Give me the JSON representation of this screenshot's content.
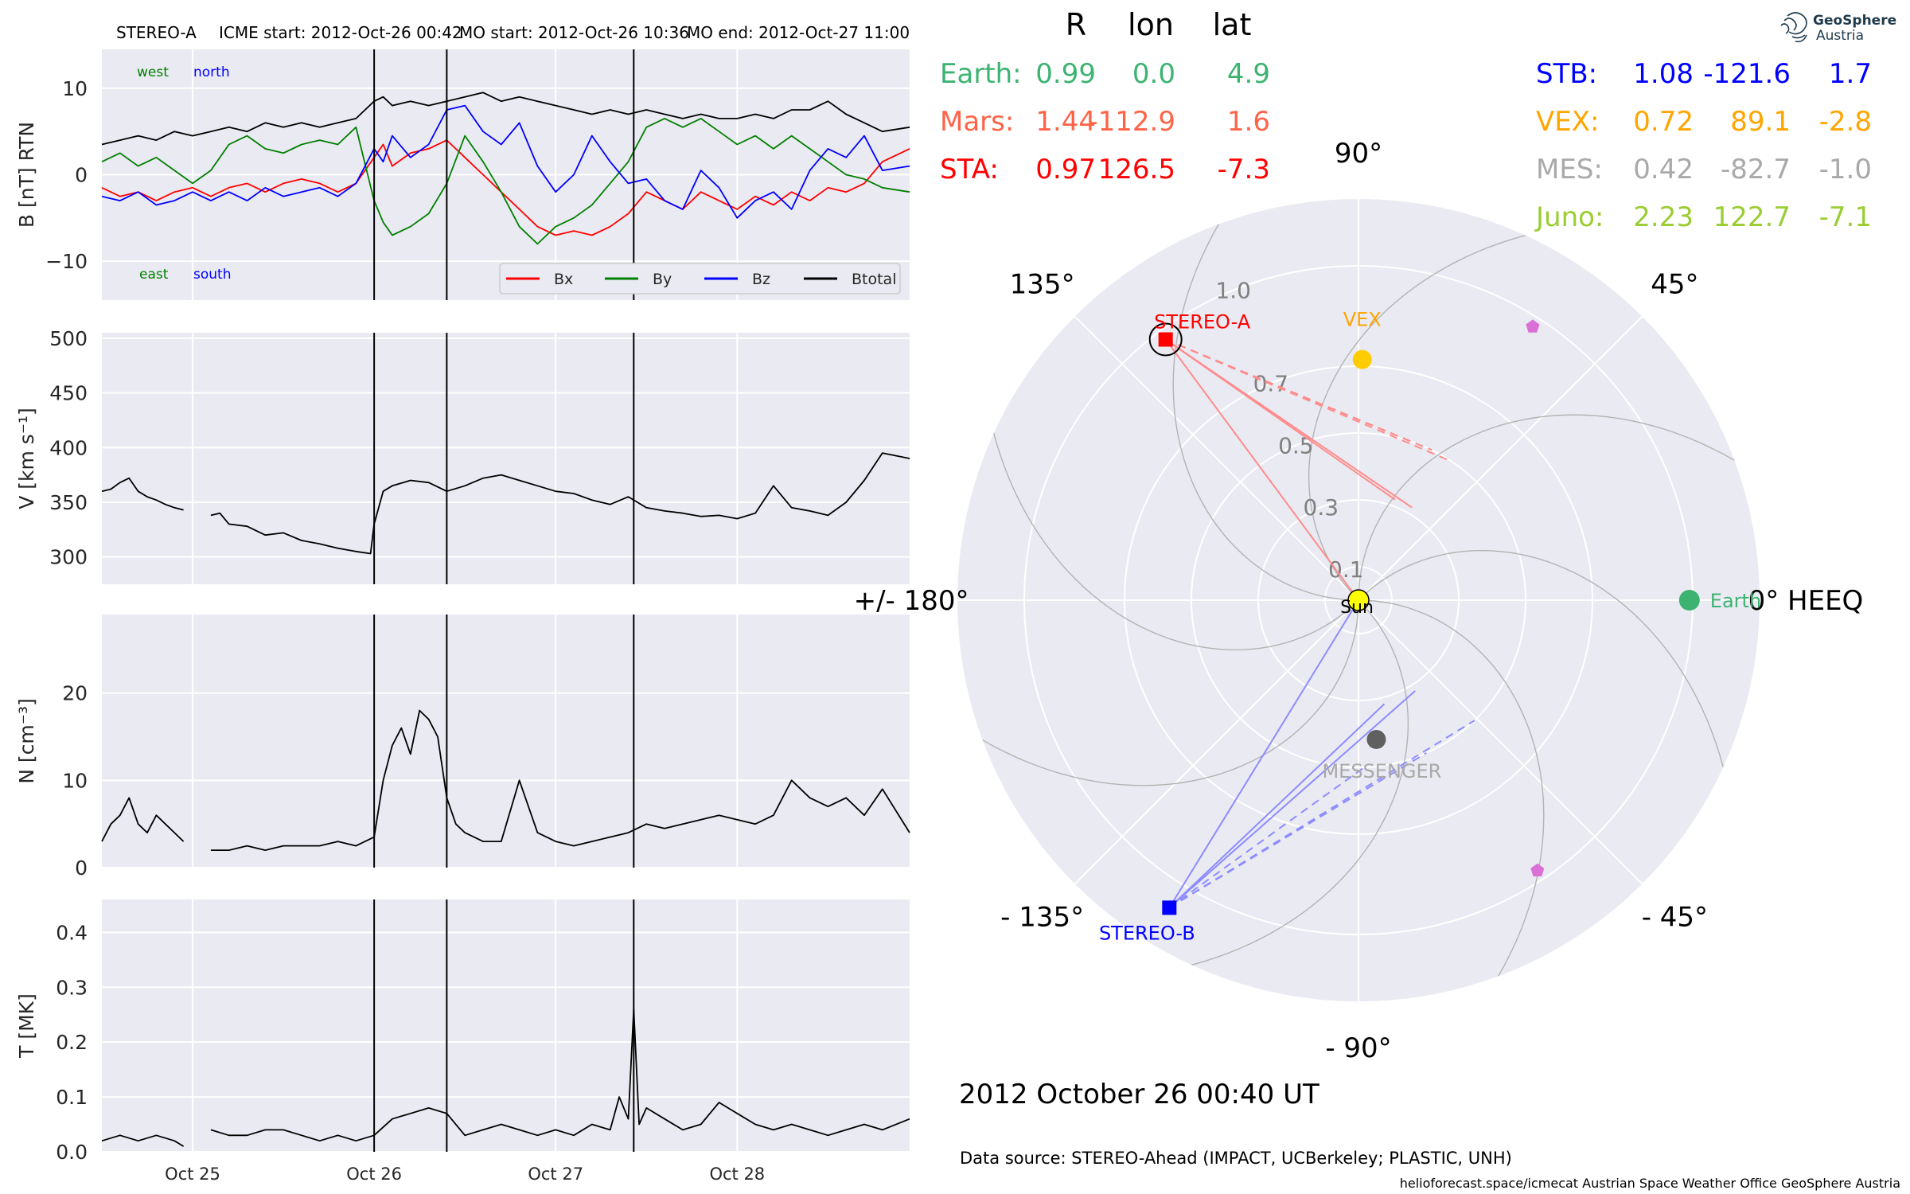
{
  "header": {
    "spacecraft": "STEREO-A",
    "icme_start": "ICME start: 2012-Oct-26 00:42",
    "mo_start": "MO start: 2012-Oct-26 10:36",
    "mo_end": "MO end: 2012-Oct-27 11:00"
  },
  "chart_data": [
    {
      "type": "line",
      "name": "magnetic-field",
      "ylabel": "B [nT] RTN",
      "ylim": [
        -14.5,
        14.5
      ],
      "yticks": [
        -10,
        0,
        10
      ],
      "ytick_labels": [
        "−10",
        "0",
        "10"
      ],
      "xlim": [
        0.0,
        4.45
      ],
      "xticks": [
        0.5,
        1.5,
        2.5,
        3.5
      ],
      "xtick_labels": [
        "Oct 25",
        "Oct 26",
        "Oct 27",
        "Oct 28"
      ],
      "event_lines": [
        1.5,
        1.9,
        2.93
      ],
      "corner_labels": {
        "west": "west",
        "north": "north",
        "east": "east",
        "south": "south"
      },
      "legend": [
        "Bx",
        "By",
        "Bz",
        "Btotal"
      ],
      "series": [
        {
          "name": "Bx",
          "color": "#ff0000",
          "x": [
            0.0,
            0.1,
            0.2,
            0.3,
            0.4,
            0.5,
            0.6,
            0.7,
            0.8,
            0.9,
            1.0,
            1.1,
            1.2,
            1.3,
            1.4,
            1.5,
            1.55,
            1.6,
            1.7,
            1.8,
            1.9,
            2.0,
            2.1,
            2.2,
            2.3,
            2.4,
            2.5,
            2.6,
            2.7,
            2.8,
            2.9,
            3.0,
            3.1,
            3.2,
            3.3,
            3.4,
            3.5,
            3.6,
            3.7,
            3.8,
            3.9,
            4.0,
            4.1,
            4.2,
            4.3,
            4.45
          ],
          "y": [
            -1.5,
            -2.5,
            -2.0,
            -3.0,
            -2.0,
            -1.5,
            -2.5,
            -1.5,
            -1.0,
            -2.0,
            -1.0,
            -0.5,
            -1.0,
            -2.0,
            -1.0,
            2.0,
            3.5,
            1.0,
            2.5,
            3.0,
            4.0,
            2.0,
            0.0,
            -2.0,
            -4.0,
            -6.0,
            -7.0,
            -6.5,
            -7.0,
            -6.0,
            -4.5,
            -2.0,
            -3.0,
            -4.0,
            -2.0,
            -3.0,
            -4.0,
            -2.5,
            -3.5,
            -2.0,
            -3.0,
            -1.5,
            -2.0,
            -1.0,
            1.5,
            3.0
          ]
        },
        {
          "name": "By",
          "color": "#008000",
          "x": [
            0.0,
            0.1,
            0.2,
            0.3,
            0.4,
            0.5,
            0.6,
            0.7,
            0.8,
            0.9,
            1.0,
            1.1,
            1.2,
            1.3,
            1.4,
            1.5,
            1.55,
            1.6,
            1.7,
            1.8,
            1.9,
            2.0,
            2.1,
            2.2,
            2.3,
            2.4,
            2.5,
            2.6,
            2.7,
            2.8,
            2.9,
            3.0,
            3.1,
            3.2,
            3.3,
            3.4,
            3.5,
            3.6,
            3.7,
            3.8,
            3.9,
            4.0,
            4.1,
            4.2,
            4.3,
            4.45
          ],
          "y": [
            1.5,
            2.5,
            1.0,
            2.0,
            0.5,
            -1.0,
            0.5,
            3.5,
            4.5,
            3.0,
            2.5,
            3.5,
            4.0,
            3.5,
            5.5,
            -3.0,
            -5.5,
            -7.0,
            -6.0,
            -4.5,
            -1.0,
            4.5,
            1.5,
            -2.0,
            -6.0,
            -8.0,
            -6.0,
            -5.0,
            -3.5,
            -1.0,
            1.5,
            5.5,
            6.5,
            5.5,
            6.5,
            5.0,
            3.5,
            4.5,
            3.0,
            4.5,
            3.0,
            1.5,
            0.0,
            -0.5,
            -1.5,
            -2.0
          ]
        },
        {
          "name": "Bz",
          "color": "#0000ff",
          "x": [
            0.0,
            0.1,
            0.2,
            0.3,
            0.4,
            0.5,
            0.6,
            0.7,
            0.8,
            0.9,
            1.0,
            1.1,
            1.2,
            1.3,
            1.4,
            1.5,
            1.55,
            1.6,
            1.7,
            1.8,
            1.9,
            2.0,
            2.1,
            2.2,
            2.3,
            2.4,
            2.5,
            2.6,
            2.7,
            2.8,
            2.9,
            3.0,
            3.1,
            3.2,
            3.3,
            3.4,
            3.5,
            3.6,
            3.7,
            3.8,
            3.9,
            4.0,
            4.1,
            4.2,
            4.3,
            4.45
          ],
          "y": [
            -2.5,
            -3.0,
            -2.0,
            -3.5,
            -3.0,
            -2.0,
            -3.0,
            -2.0,
            -3.0,
            -1.5,
            -2.5,
            -2.0,
            -1.5,
            -2.5,
            -1.0,
            3.0,
            1.5,
            4.5,
            2.0,
            3.5,
            7.5,
            8.0,
            5.0,
            3.5,
            6.0,
            1.0,
            -2.0,
            0.0,
            4.5,
            1.5,
            -1.0,
            -0.5,
            -3.0,
            -4.0,
            0.5,
            -1.5,
            -5.0,
            -3.0,
            -2.0,
            -4.0,
            0.5,
            3.0,
            2.0,
            4.5,
            0.5,
            1.0
          ]
        },
        {
          "name": "Btotal",
          "color": "#000000",
          "x": [
            0.0,
            0.1,
            0.2,
            0.3,
            0.4,
            0.5,
            0.6,
            0.7,
            0.8,
            0.9,
            1.0,
            1.1,
            1.2,
            1.3,
            1.4,
            1.5,
            1.55,
            1.6,
            1.7,
            1.8,
            1.9,
            2.0,
            2.1,
            2.2,
            2.3,
            2.4,
            2.5,
            2.6,
            2.7,
            2.8,
            2.9,
            3.0,
            3.1,
            3.2,
            3.3,
            3.4,
            3.5,
            3.6,
            3.7,
            3.8,
            3.9,
            4.0,
            4.1,
            4.2,
            4.3,
            4.45
          ],
          "y": [
            3.5,
            4.0,
            4.5,
            4.0,
            5.0,
            4.5,
            5.0,
            5.5,
            5.0,
            6.0,
            5.5,
            6.0,
            5.5,
            6.0,
            6.5,
            8.5,
            9.0,
            8.0,
            8.5,
            8.0,
            8.5,
            9.0,
            9.5,
            8.5,
            9.0,
            8.5,
            8.0,
            7.5,
            7.0,
            7.5,
            7.0,
            7.5,
            7.0,
            6.5,
            7.0,
            6.5,
            6.5,
            7.0,
            6.5,
            7.5,
            7.5,
            8.5,
            7.0,
            6.0,
            5.0,
            5.5
          ]
        }
      ]
    },
    {
      "type": "line",
      "name": "speed",
      "ylabel": "V [km s⁻¹]",
      "ylim": [
        275,
        505
      ],
      "yticks": [
        300,
        350,
        400,
        450,
        500
      ],
      "ytick_labels": [
        "300",
        "350",
        "400",
        "450",
        "500"
      ],
      "xlim": [
        0.0,
        4.45
      ],
      "xticks": [
        0.5,
        1.5,
        2.5,
        3.5
      ],
      "event_lines": [
        1.5,
        1.9,
        2.93
      ],
      "series": [
        {
          "name": "V",
          "color": "#000000",
          "x": [
            0.0,
            0.05,
            0.1,
            0.15,
            0.2,
            0.25,
            0.3,
            0.35,
            0.4,
            0.45,
            null,
            0.6,
            0.65,
            0.7,
            0.8,
            0.9,
            1.0,
            1.1,
            1.2,
            1.3,
            1.4,
            1.48,
            1.5,
            1.55,
            1.6,
            1.7,
            1.8,
            1.9,
            2.0,
            2.1,
            2.2,
            2.3,
            2.4,
            2.5,
            2.6,
            2.7,
            2.8,
            2.9,
            3.0,
            3.1,
            3.2,
            3.3,
            3.4,
            3.5,
            3.6,
            3.7,
            3.8,
            3.9,
            4.0,
            4.1,
            4.2,
            4.3,
            4.45
          ],
          "y": [
            360,
            362,
            368,
            372,
            360,
            355,
            352,
            348,
            345,
            343,
            null,
            338,
            340,
            330,
            328,
            320,
            322,
            315,
            312,
            308,
            305,
            303,
            330,
            360,
            365,
            370,
            368,
            360,
            365,
            372,
            375,
            370,
            365,
            360,
            358,
            352,
            348,
            355,
            345,
            342,
            340,
            337,
            338,
            335,
            340,
            365,
            345,
            342,
            338,
            350,
            370,
            395,
            390
          ]
        }
      ]
    },
    {
      "type": "line",
      "name": "density",
      "ylabel": "N [cm⁻³]",
      "ylim": [
        0,
        29
      ],
      "yticks": [
        0,
        10,
        20
      ],
      "ytick_labels": [
        "0",
        "10",
        "20"
      ],
      "xlim": [
        0.0,
        4.45
      ],
      "xticks": [
        0.5,
        1.5,
        2.5,
        3.5
      ],
      "event_lines": [
        1.5,
        1.9,
        2.93
      ],
      "series": [
        {
          "name": "N",
          "color": "#000000",
          "x": [
            0.0,
            0.05,
            0.1,
            0.15,
            0.2,
            0.25,
            0.3,
            0.35,
            0.4,
            0.45,
            null,
            0.6,
            0.7,
            0.8,
            0.9,
            1.0,
            1.1,
            1.2,
            1.3,
            1.4,
            1.45,
            1.5,
            1.55,
            1.6,
            1.65,
            1.7,
            1.75,
            1.8,
            1.85,
            1.9,
            1.95,
            2.0,
            2.1,
            2.2,
            2.3,
            2.4,
            2.5,
            2.6,
            2.7,
            2.8,
            2.9,
            3.0,
            3.1,
            3.2,
            3.3,
            3.4,
            3.5,
            3.6,
            3.7,
            3.8,
            3.9,
            4.0,
            4.1,
            4.2,
            4.3,
            4.45
          ],
          "y": [
            3,
            5,
            6,
            8,
            5,
            4,
            6,
            5,
            4,
            3,
            null,
            2,
            2,
            2.5,
            2,
            2.5,
            2.5,
            2.5,
            3,
            2.5,
            3,
            3.5,
            10,
            14,
            16,
            13,
            18,
            17,
            15,
            8,
            5,
            4,
            3,
            3,
            10,
            4,
            3,
            2.5,
            3,
            3.5,
            4,
            5,
            4.5,
            5,
            5.5,
            6,
            5.5,
            5,
            6,
            10,
            8,
            7,
            8,
            6,
            9,
            4
          ]
        }
      ]
    },
    {
      "type": "line",
      "name": "temperature",
      "ylabel": "T [MK]",
      "ylim": [
        0,
        0.46
      ],
      "yticks": [
        0.0,
        0.1,
        0.2,
        0.3,
        0.4
      ],
      "ytick_labels": [
        "0.0",
        "0.1",
        "0.2",
        "0.3",
        "0.4"
      ],
      "xlim": [
        0.0,
        4.45
      ],
      "xticks": [
        0.5,
        1.5,
        2.5,
        3.5
      ],
      "xtick_labels": [
        "Oct 25",
        "Oct 26",
        "Oct 27",
        "Oct 28"
      ],
      "event_lines": [
        1.5,
        1.9,
        2.93
      ],
      "series": [
        {
          "name": "T",
          "color": "#000000",
          "x": [
            0.0,
            0.1,
            0.2,
            0.3,
            0.4,
            0.45,
            null,
            0.6,
            0.7,
            0.8,
            0.9,
            1.0,
            1.1,
            1.2,
            1.3,
            1.4,
            1.5,
            1.6,
            1.7,
            1.8,
            1.9,
            2.0,
            2.1,
            2.2,
            2.3,
            2.4,
            2.5,
            2.6,
            2.7,
            2.8,
            2.85,
            2.9,
            2.93,
            2.96,
            3.0,
            3.1,
            3.2,
            3.3,
            3.4,
            3.5,
            3.6,
            3.7,
            3.8,
            3.9,
            4.0,
            4.1,
            4.2,
            4.3,
            4.45
          ],
          "y": [
            0.02,
            0.03,
            0.02,
            0.03,
            0.02,
            0.01,
            null,
            0.04,
            0.03,
            0.03,
            0.04,
            0.04,
            0.03,
            0.02,
            0.03,
            0.02,
            0.03,
            0.06,
            0.07,
            0.08,
            0.07,
            0.03,
            0.04,
            0.05,
            0.04,
            0.03,
            0.04,
            0.03,
            0.05,
            0.04,
            0.1,
            0.06,
            0.26,
            0.05,
            0.08,
            0.06,
            0.04,
            0.05,
            0.09,
            0.07,
            0.05,
            0.04,
            0.05,
            0.04,
            0.03,
            0.04,
            0.05,
            0.04,
            0.06
          ]
        }
      ]
    },
    {
      "type": "scatter",
      "name": "orbit-polar",
      "projection": "polar",
      "radial_ticks": [
        0.1,
        0.3,
        0.5,
        0.7,
        1.0
      ],
      "radial_tick_labels": [
        "0.1",
        "0.3",
        "0.5",
        "0.7",
        "1.0"
      ],
      "rmax": 1.2,
      "angle_labels": [
        {
          "deg": 0,
          "text": "0° HEEQ"
        },
        {
          "deg": 45,
          "text": "45°"
        },
        {
          "deg": 90,
          "text": "90°"
        },
        {
          "deg": 135,
          "text": "135°"
        },
        {
          "deg": 180,
          "text": "+/- 180°"
        },
        {
          "deg": -135,
          "text": "- 135°"
        },
        {
          "deg": -90,
          "text": "- 90°"
        },
        {
          "deg": -45,
          "text": "- 45°"
        }
      ],
      "spirals": [
        0,
        45,
        90,
        135,
        180,
        225,
        270,
        315
      ],
      "bodies": [
        {
          "name": "Sun",
          "label": "Sun",
          "r": 0.0,
          "lon": 0.0,
          "marker": "circle",
          "color": "#ffff00",
          "edge": "#000000",
          "size": 13
        },
        {
          "name": "Earth",
          "label": "Earth",
          "r": 0.99,
          "lon": 0.0,
          "marker": "circle",
          "color": "#3cb371",
          "size": 13
        },
        {
          "name": "VEX",
          "label": "VEX",
          "r": 0.72,
          "lon": 89.1,
          "marker": "circle",
          "color": "#ffcc00",
          "size": 12
        },
        {
          "name": "MESSENGER",
          "label": "MESSENGER",
          "r": 0.42,
          "lon": -82.7,
          "marker": "circle",
          "color": "#606060",
          "size": 12
        },
        {
          "name": "STEREO-A",
          "label": "STEREO-A",
          "r": 0.97,
          "lon": 126.5,
          "marker": "square",
          "color": "#ff0000",
          "size": 18,
          "ring": true
        },
        {
          "name": "STEREO-B",
          "label": "STEREO-B",
          "r": 1.08,
          "lon": -121.6,
          "marker": "square",
          "color": "#0000ff",
          "size": 18
        },
        {
          "name": "Pentagon-1",
          "label": "",
          "r": 0.97,
          "lon": 57.5,
          "marker": "pentagon",
          "color": "#da70d6",
          "size": 9
        },
        {
          "name": "Pentagon-2",
          "label": "",
          "r": 0.97,
          "lon": -56.5,
          "marker": "pentagon",
          "color": "#da70d6",
          "size": 9
        }
      ],
      "stereo_a_lines": {
        "color": "#ff8c8c",
        "target_angles": [
          60,
          70
        ],
        "dashed_angles": [
          56,
          64,
          72
        ]
      },
      "stereo_b_lines": {
        "color": "#8c8cff",
        "target_angles": [
          -58,
          -76
        ],
        "dashed_angles": [
          -46,
          -66,
          -88
        ]
      }
    }
  ],
  "positions_table": {
    "headers": [
      "R",
      "lon",
      "lat"
    ],
    "left": [
      {
        "name": "Earth:",
        "r": "0.99",
        "lon": "0.0",
        "lat": "4.9",
        "color": "#3cb371"
      },
      {
        "name": "Mars:",
        "r": "1.44",
        "lon": "-112.9",
        "lat": "1.6",
        "color": "#ff6347"
      },
      {
        "name": "STA:",
        "r": "0.97",
        "lon": "126.5",
        "lat": "-7.3",
        "color": "#ff0000"
      }
    ],
    "right": [
      {
        "name": "STB:",
        "r": "1.08",
        "lon": "-121.6",
        "lat": "1.7",
        "color": "#0000ff"
      },
      {
        "name": "VEX:",
        "r": "0.72",
        "lon": "89.1",
        "lat": "-2.8",
        "color": "#ffa500"
      },
      {
        "name": "MES:",
        "r": "0.42",
        "lon": "-82.7",
        "lat": "-1.0",
        "color": "#a9a9a9"
      },
      {
        "name": "Juno:",
        "r": "2.23",
        "lon": "122.7",
        "lat": "-7.1",
        "color": "#9acd32"
      }
    ]
  },
  "logo": {
    "line1": "GeoSphere",
    "line2": "Austria"
  },
  "timestamp": "2012 October 26  00:40 UT",
  "data_source": "Data source: STEREO-Ahead (IMPACT, UCBerkeley; PLASTIC, UNH)",
  "footer": "helioforecast.space/icmecat   Austrian Space Weather Office   GeoSphere Austria"
}
